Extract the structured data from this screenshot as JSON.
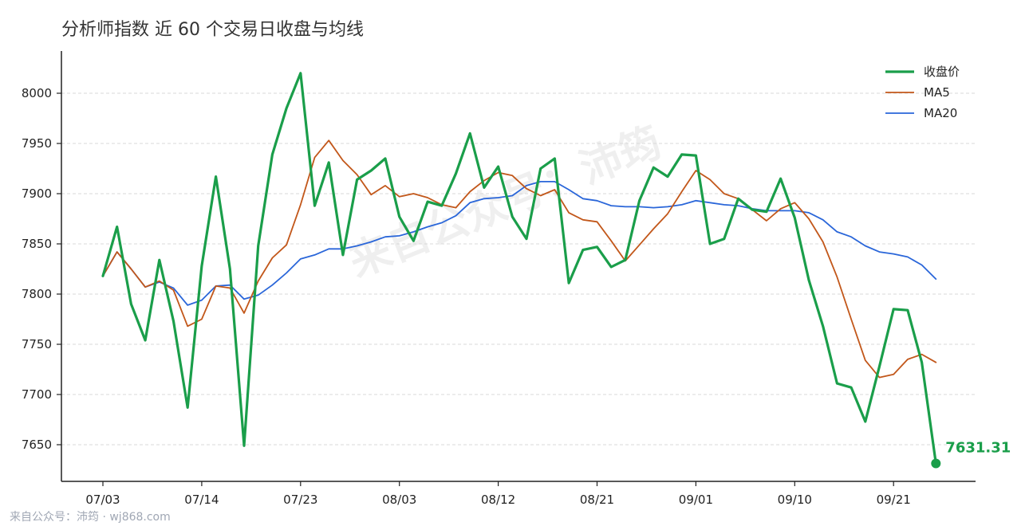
{
  "chart_data": {
    "type": "line",
    "title": "分析师指数 近 60 个交易日收盘与均线",
    "xlabel": "",
    "ylabel": "",
    "ylim": [
      7612,
      8063
    ],
    "yticks": [
      7650,
      7700,
      7750,
      7800,
      7850,
      7900,
      7950,
      8000
    ],
    "xtick_labels": [
      "07/03",
      "07/14",
      "07/23",
      "08/03",
      "08/12",
      "08/21",
      "09/01",
      "09/10",
      "09/21"
    ],
    "xtick_indices": [
      0,
      7,
      14,
      21,
      28,
      35,
      42,
      49,
      56
    ],
    "legend_position": "top-right",
    "grid": "horizontal dashed",
    "series": [
      {
        "name": "收盘价",
        "color": "#1a9e4a",
        "values": [
          7818,
          7867,
          7790,
          7754,
          7834,
          7773,
          7687,
          7828,
          7917,
          7825,
          7649,
          7848,
          7939,
          7985,
          8020,
          7888,
          7931,
          7839,
          7914,
          7923,
          7935,
          7877,
          7853,
          7892,
          7888,
          7920,
          7960,
          7906,
          7927,
          7877,
          7855,
          7925,
          7935,
          7811,
          7844,
          7847,
          7827,
          7834,
          7893,
          7926,
          7917,
          7939,
          7938,
          7850,
          7855,
          7895,
          7884,
          7882,
          7915,
          7876,
          7814,
          7768,
          7711,
          7707,
          7673,
          7728,
          7785,
          7784,
          7732,
          7631.31
        ]
      },
      {
        "name": "MA5",
        "color": "#c2571a",
        "values": [
          7818,
          7842,
          7825,
          7807,
          7813,
          7804,
          7768,
          7775,
          7808,
          7806,
          7781,
          7813,
          7836,
          7849,
          7889,
          7936,
          7953,
          7933,
          7919,
          7899,
          7908,
          7897,
          7900,
          7896,
          7889,
          7886,
          7902,
          7913,
          7921,
          7918,
          7905,
          7898,
          7904,
          7881,
          7874,
          7872,
          7853,
          7833,
          7849,
          7865,
          7880,
          7902,
          7923,
          7914,
          7900,
          7895,
          7884,
          7873,
          7885,
          7891,
          7875,
          7852,
          7817,
          7775,
          7734,
          7717,
          7720,
          7735,
          7740,
          7732
        ]
      },
      {
        "name": "MA20",
        "color": "#2a66d9",
        "values": [
          7818,
          7842,
          7825,
          7807,
          7812,
          7806,
          7789,
          7794,
          7808,
          7809,
          7795,
          7799,
          7809,
          7821,
          7835,
          7839,
          7845,
          7845,
          7848,
          7852,
          7857,
          7858,
          7862,
          7867,
          7871,
          7878,
          7891,
          7895,
          7896,
          7898,
          7908,
          7912,
          7912,
          7904,
          7895,
          7893,
          7888,
          7887,
          7887,
          7886,
          7887,
          7889,
          7893,
          7891,
          7889,
          7888,
          7885,
          7883,
          7883,
          7883,
          7881,
          7874,
          7862,
          7857,
          7848,
          7842,
          7840,
          7837,
          7829,
          7815
        ]
      }
    ],
    "last_value_label": "7631.31"
  },
  "watermark": "来自公众号：沛筠",
  "footer": "来自公众号：沛筠 · wj868.com"
}
